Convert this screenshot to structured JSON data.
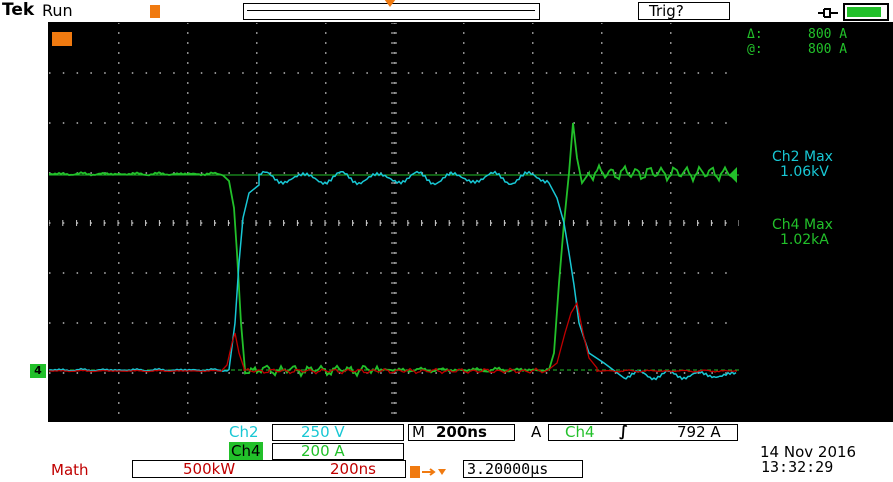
{
  "header": {
    "brand": "Tek",
    "state": "Run",
    "trigger_status": "Trig?",
    "battery_level": 0.9
  },
  "cursor_readout": {
    "delta_label": "Δ:",
    "delta_value": "800 A",
    "at_label": "@:",
    "at_value": "800 A"
  },
  "measurements": {
    "ch2_label": "Ch2 Max",
    "ch2_value": "1.06kV",
    "ch4_label": "Ch4 Max",
    "ch4_value": "1.02kA"
  },
  "channels": {
    "ch2_label": "Ch2",
    "ch2_scale": "250 V",
    "ch4_label": "Ch4",
    "ch4_scale": "200 A",
    "ch4_marker": "4"
  },
  "timebase": {
    "mode": "M",
    "scale": "200ns",
    "trigger_mode": "A",
    "trigger_channel": "Ch4",
    "trigger_slope": "∫",
    "trigger_level": "792 A"
  },
  "math": {
    "label": "Math",
    "scale": "500kW",
    "time_scale": "200ns",
    "position": "3.20000μs"
  },
  "datetime": {
    "date": "14 Nov 2016",
    "time": "13:32:29"
  },
  "colors": {
    "ch2": "#18c7d4",
    "ch4": "#22c02a",
    "math": "#c00000",
    "trigger": "#f07a10",
    "background": "#000000"
  }
}
